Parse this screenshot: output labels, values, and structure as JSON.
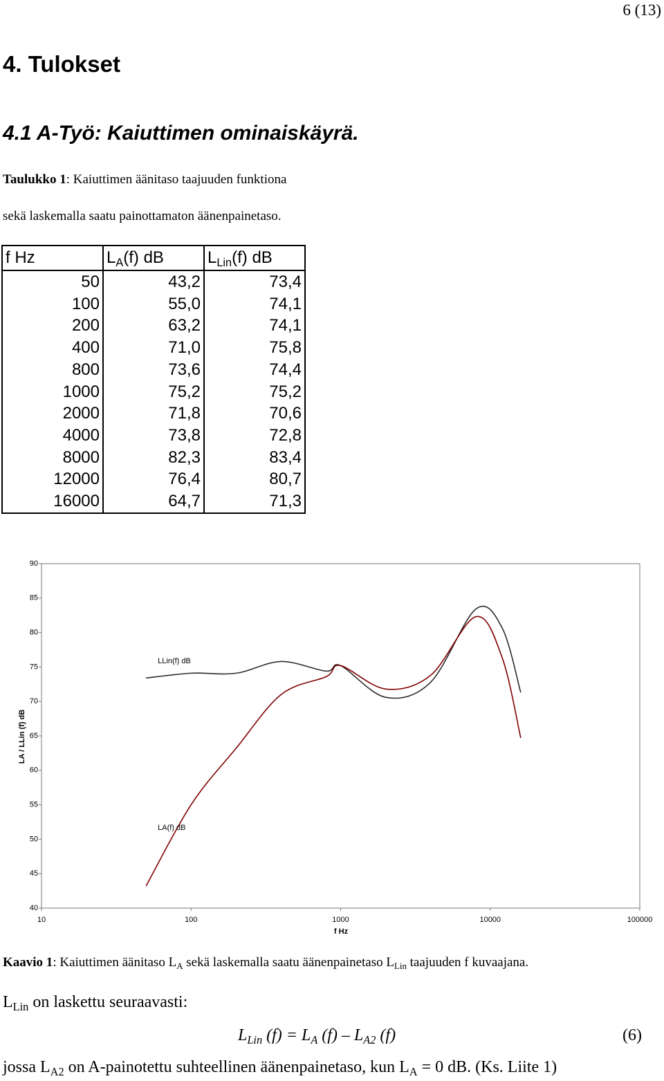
{
  "header": {
    "page": "6 (13)"
  },
  "heading": "4. Tulokset",
  "subheading": "4.1 A-Työ: Kaiuttimen ominaiskäyrä.",
  "table_caption": {
    "line1": [
      {
        "bold": "Taulukko 1"
      },
      {
        "text": ": Kaiuttimen äänitaso taajuuden funktiona"
      }
    ],
    "line2": [
      {
        "text": "sekä laskemalla saatu painottamaton äänenpainetaso."
      }
    ]
  },
  "table": {
    "header": [
      [
        {
          "text": "f Hz"
        }
      ],
      [
        {
          "text": "L"
        },
        {
          "sub": "A"
        },
        {
          "text": "(f) dB"
        }
      ],
      [
        {
          "text": "L"
        },
        {
          "sub": "Lin"
        },
        {
          "text": "(f) dB"
        }
      ]
    ],
    "rows": [
      [
        "50",
        "43,2",
        "73,4"
      ],
      [
        "100",
        "55,0",
        "74,1"
      ],
      [
        "200",
        "63,2",
        "74,1"
      ],
      [
        "400",
        "71,0",
        "75,8"
      ],
      [
        "800",
        "73,6",
        "74,4"
      ],
      [
        "1000",
        "75,2",
        "75,2"
      ],
      [
        "2000",
        "71,8",
        "70,6"
      ],
      [
        "4000",
        "73,8",
        "72,8"
      ],
      [
        "8000",
        "82,3",
        "83,4"
      ],
      [
        "12000",
        "76,4",
        "80,7"
      ],
      [
        "16000",
        "64,7",
        "71,3"
      ]
    ]
  },
  "chart_data": {
    "type": "line",
    "x": [
      50,
      100,
      200,
      400,
      800,
      1000,
      2000,
      4000,
      8000,
      12000,
      16000
    ],
    "series": [
      {
        "name": "LLin(f) dB",
        "color": "#2a2a2a",
        "values": [
          73.4,
          74.1,
          74.1,
          75.8,
          74.4,
          75.2,
          70.6,
          72.8,
          83.4,
          80.7,
          71.3
        ]
      },
      {
        "name": "LA(f) dB",
        "color": "#800000",
        "values": [
          43.2,
          55.0,
          63.2,
          71.0,
          73.6,
          75.2,
          71.8,
          73.8,
          82.3,
          76.4,
          64.7
        ]
      }
    ],
    "xlabel": "f Hz",
    "ylabel": "LA / LLin (f) dB",
    "xlog": true,
    "xlim": [
      10,
      100000
    ],
    "xticks": [
      10,
      100,
      1000,
      10000,
      100000
    ],
    "ylim": [
      40,
      90
    ],
    "yticks": [
      40,
      45,
      50,
      55,
      60,
      65,
      70,
      75,
      80,
      85,
      90
    ]
  },
  "chart_caption": [
    {
      "bold": "Kaavio 1"
    },
    {
      "text": ": Kaiuttimen äänitaso L"
    },
    {
      "sub": "A"
    },
    {
      "text": " sekä laskemalla saatu äänenpainetaso L"
    },
    {
      "sub": "Lin"
    },
    {
      "text": " taajuuden f kuvaajana."
    }
  ],
  "para1": [
    {
      "text": "L"
    },
    {
      "sub": "Lin"
    },
    {
      "text": " on laskettu seuraavasti:"
    }
  ],
  "formula": [
    {
      "text": "L"
    },
    {
      "sub": "Lin"
    },
    {
      "text": " (f) = L"
    },
    {
      "sub": "A"
    },
    {
      "text": " (f) – L"
    },
    {
      "sub": "A2"
    },
    {
      "text": " (f)"
    }
  ],
  "formula_number": "(6)",
  "para2": [
    {
      "text": "jossa L"
    },
    {
      "sub": "A2"
    },
    {
      "text": " on A-painotettu suhteellinen äänenpainetaso, kun L"
    },
    {
      "sub": "A"
    },
    {
      "text": " = 0 dB. (Ks. Liite 1)"
    }
  ]
}
